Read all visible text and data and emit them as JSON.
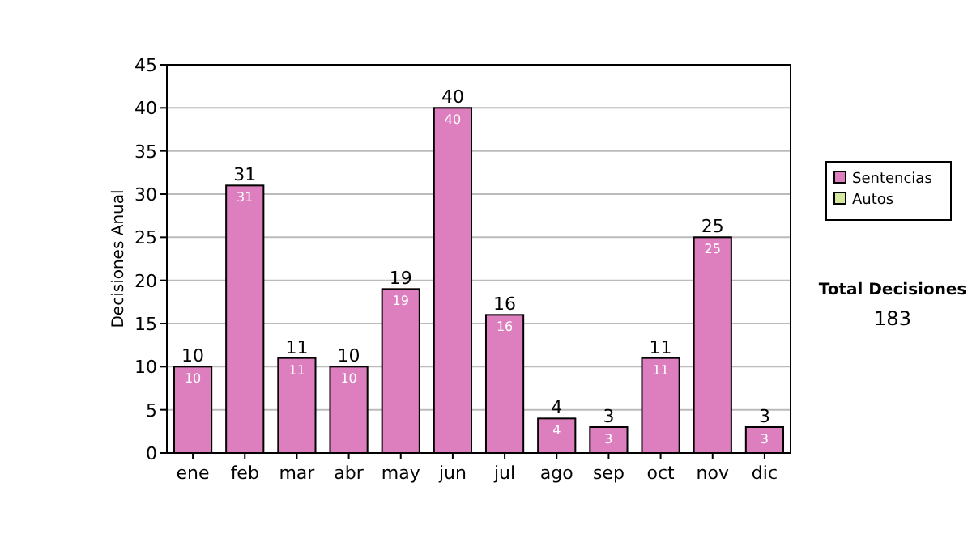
{
  "chart_data": {
    "type": "bar",
    "stacked": true,
    "ylabel": "Decisiones Anual",
    "categories": [
      "ene",
      "feb",
      "mar",
      "abr",
      "may",
      "jun",
      "jul",
      "ago",
      "sep",
      "oct",
      "nov",
      "dic"
    ],
    "series": [
      {
        "name": "Sentencias",
        "color": "#dd7fbf",
        "values": [
          10,
          31,
          11,
          10,
          19,
          40,
          16,
          4,
          3,
          11,
          25,
          3
        ],
        "value_labels": [
          "10",
          "31",
          "11",
          "10",
          "19",
          "40",
          "16",
          "4",
          "3",
          "11",
          "25",
          "3"
        ]
      },
      {
        "name": "Autos",
        "color": "#d4e8a0",
        "values": [
          0,
          0,
          0,
          0,
          0,
          0,
          0,
          0,
          0,
          0,
          0,
          0
        ]
      }
    ],
    "totals": [
      "10",
      "31",
      "11",
      "10",
      "19",
      "40",
      "16",
      "4",
      "3",
      "11",
      "25",
      "3"
    ],
    "ylim": [
      0,
      45
    ],
    "yticks": [
      0,
      5,
      10,
      15,
      20,
      25,
      30,
      35,
      40,
      45
    ],
    "grid": "y",
    "legend": "right",
    "annotations": [
      "Total Decisiones",
      "183"
    ]
  }
}
